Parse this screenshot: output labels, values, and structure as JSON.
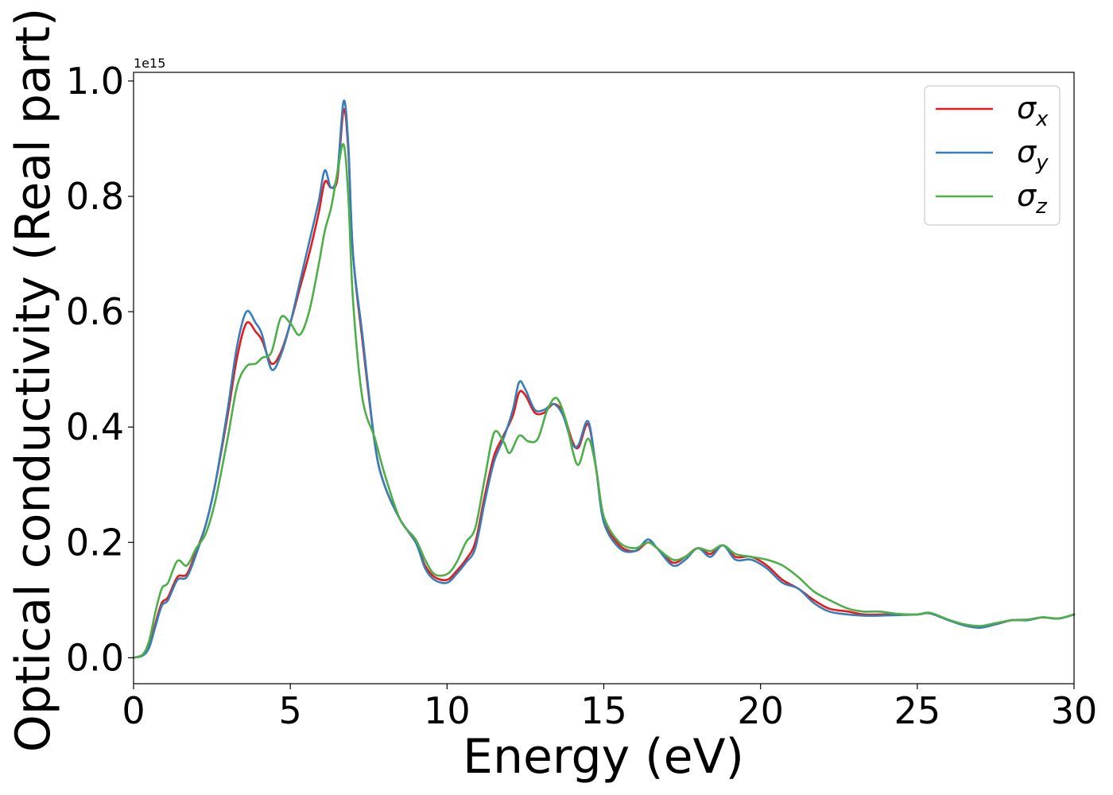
{
  "chart_data": {
    "type": "line",
    "xlabel": "Energy (eV)",
    "ylabel": "Optical conductivity (Real part)",
    "y_offset_text": "1e15",
    "xlim": [
      0,
      30
    ],
    "ylim": [
      -0.045,
      1.015
    ],
    "xticks": [
      0,
      5,
      10,
      15,
      20,
      25,
      30
    ],
    "xtick_labels": [
      "0",
      "5",
      "10",
      "15",
      "20",
      "25",
      "30"
    ],
    "yticks": [
      0.0,
      0.2,
      0.4,
      0.6,
      0.8,
      1.0
    ],
    "ytick_labels": [
      "0.0",
      "0.2",
      "0.4",
      "0.6",
      "0.8",
      "1.0"
    ],
    "grid": false,
    "legend_position": "top-right",
    "series": [
      {
        "name": "σx",
        "symbol": "σ",
        "subscript": "x",
        "color": "#e41a1c",
        "points": [
          [
            0,
            0
          ],
          [
            0.3,
            0.005
          ],
          [
            0.5,
            0.02
          ],
          [
            0.7,
            0.06
          ],
          [
            0.9,
            0.095
          ],
          [
            1.1,
            0.105
          ],
          [
            1.4,
            0.14
          ],
          [
            1.7,
            0.145
          ],
          [
            2.0,
            0.185
          ],
          [
            2.3,
            0.23
          ],
          [
            2.6,
            0.3
          ],
          [
            3.0,
            0.42
          ],
          [
            3.3,
            0.52
          ],
          [
            3.6,
            0.58
          ],
          [
            3.9,
            0.565
          ],
          [
            4.1,
            0.55
          ],
          [
            4.4,
            0.51
          ],
          [
            4.7,
            0.53
          ],
          [
            5.0,
            0.58
          ],
          [
            5.3,
            0.64
          ],
          [
            5.6,
            0.7
          ],
          [
            5.9,
            0.77
          ],
          [
            6.1,
            0.825
          ],
          [
            6.3,
            0.815
          ],
          [
            6.5,
            0.83
          ],
          [
            6.7,
            0.95
          ],
          [
            6.85,
            0.88
          ],
          [
            7.0,
            0.7
          ],
          [
            7.3,
            0.55
          ],
          [
            7.7,
            0.37
          ],
          [
            8.0,
            0.3
          ],
          [
            8.5,
            0.24
          ],
          [
            9.0,
            0.2
          ],
          [
            9.3,
            0.16
          ],
          [
            9.6,
            0.14
          ],
          [
            10.0,
            0.135
          ],
          [
            10.3,
            0.15
          ],
          [
            10.6,
            0.17
          ],
          [
            10.9,
            0.2
          ],
          [
            11.2,
            0.28
          ],
          [
            11.5,
            0.35
          ],
          [
            11.8,
            0.385
          ],
          [
            12.1,
            0.42
          ],
          [
            12.3,
            0.46
          ],
          [
            12.5,
            0.455
          ],
          [
            12.8,
            0.425
          ],
          [
            13.1,
            0.425
          ],
          [
            13.4,
            0.44
          ],
          [
            13.7,
            0.425
          ],
          [
            14.0,
            0.375
          ],
          [
            14.2,
            0.365
          ],
          [
            14.5,
            0.405
          ],
          [
            14.75,
            0.33
          ],
          [
            15.0,
            0.24
          ],
          [
            15.5,
            0.195
          ],
          [
            16.0,
            0.185
          ],
          [
            16.4,
            0.2
          ],
          [
            16.7,
            0.19
          ],
          [
            17.2,
            0.165
          ],
          [
            17.6,
            0.175
          ],
          [
            18.0,
            0.19
          ],
          [
            18.4,
            0.18
          ],
          [
            18.8,
            0.195
          ],
          [
            19.2,
            0.175
          ],
          [
            19.7,
            0.175
          ],
          [
            20.2,
            0.16
          ],
          [
            20.7,
            0.135
          ],
          [
            21.2,
            0.12
          ],
          [
            21.7,
            0.1
          ],
          [
            22.2,
            0.085
          ],
          [
            22.8,
            0.08
          ],
          [
            23.3,
            0.075
          ],
          [
            23.8,
            0.075
          ],
          [
            24.4,
            0.075
          ],
          [
            25.0,
            0.075
          ],
          [
            25.4,
            0.077
          ],
          [
            26.0,
            0.065
          ],
          [
            26.5,
            0.057
          ],
          [
            27.0,
            0.053
          ],
          [
            27.5,
            0.058
          ],
          [
            28.0,
            0.065
          ],
          [
            28.5,
            0.066
          ],
          [
            29.0,
            0.07
          ],
          [
            29.5,
            0.068
          ],
          [
            30.0,
            0.075
          ]
        ]
      },
      {
        "name": "σy",
        "symbol": "σ",
        "subscript": "y",
        "color": "#377eb8",
        "points": [
          [
            0,
            0
          ],
          [
            0.3,
            0.004
          ],
          [
            0.5,
            0.018
          ],
          [
            0.7,
            0.055
          ],
          [
            0.9,
            0.09
          ],
          [
            1.1,
            0.1
          ],
          [
            1.4,
            0.135
          ],
          [
            1.7,
            0.14
          ],
          [
            2.0,
            0.18
          ],
          [
            2.3,
            0.23
          ],
          [
            2.6,
            0.3
          ],
          [
            3.0,
            0.43
          ],
          [
            3.3,
            0.54
          ],
          [
            3.6,
            0.6
          ],
          [
            3.9,
            0.58
          ],
          [
            4.1,
            0.56
          ],
          [
            4.4,
            0.5
          ],
          [
            4.7,
            0.525
          ],
          [
            5.0,
            0.58
          ],
          [
            5.3,
            0.65
          ],
          [
            5.6,
            0.72
          ],
          [
            5.9,
            0.79
          ],
          [
            6.1,
            0.845
          ],
          [
            6.3,
            0.815
          ],
          [
            6.5,
            0.84
          ],
          [
            6.7,
            0.965
          ],
          [
            6.85,
            0.89
          ],
          [
            7.0,
            0.7
          ],
          [
            7.3,
            0.56
          ],
          [
            7.7,
            0.37
          ],
          [
            8.0,
            0.3
          ],
          [
            8.5,
            0.24
          ],
          [
            9.0,
            0.2
          ],
          [
            9.3,
            0.155
          ],
          [
            9.6,
            0.135
          ],
          [
            10.0,
            0.13
          ],
          [
            10.3,
            0.145
          ],
          [
            10.6,
            0.165
          ],
          [
            10.9,
            0.19
          ],
          [
            11.2,
            0.27
          ],
          [
            11.5,
            0.34
          ],
          [
            11.8,
            0.38
          ],
          [
            12.1,
            0.43
          ],
          [
            12.3,
            0.478
          ],
          [
            12.5,
            0.465
          ],
          [
            12.8,
            0.43
          ],
          [
            13.1,
            0.43
          ],
          [
            13.4,
            0.44
          ],
          [
            13.7,
            0.42
          ],
          [
            14.0,
            0.37
          ],
          [
            14.2,
            0.37
          ],
          [
            14.5,
            0.41
          ],
          [
            14.75,
            0.33
          ],
          [
            15.0,
            0.235
          ],
          [
            15.5,
            0.19
          ],
          [
            16.0,
            0.185
          ],
          [
            16.4,
            0.205
          ],
          [
            16.7,
            0.19
          ],
          [
            17.2,
            0.16
          ],
          [
            17.6,
            0.17
          ],
          [
            18.0,
            0.19
          ],
          [
            18.4,
            0.175
          ],
          [
            18.8,
            0.195
          ],
          [
            19.2,
            0.17
          ],
          [
            19.7,
            0.17
          ],
          [
            20.2,
            0.155
          ],
          [
            20.7,
            0.13
          ],
          [
            21.2,
            0.12
          ],
          [
            21.7,
            0.095
          ],
          [
            22.2,
            0.08
          ],
          [
            22.8,
            0.075
          ],
          [
            23.3,
            0.073
          ],
          [
            23.8,
            0.073
          ],
          [
            24.4,
            0.074
          ],
          [
            25.0,
            0.075
          ],
          [
            25.4,
            0.077
          ],
          [
            26.0,
            0.065
          ],
          [
            26.5,
            0.056
          ],
          [
            27.0,
            0.052
          ],
          [
            27.5,
            0.058
          ],
          [
            28.0,
            0.065
          ],
          [
            28.5,
            0.065
          ],
          [
            29.0,
            0.07
          ],
          [
            29.5,
            0.068
          ],
          [
            30.0,
            0.075
          ]
        ]
      },
      {
        "name": "σz",
        "symbol": "σ",
        "subscript": "z",
        "color": "#4daf4a",
        "points": [
          [
            0,
            0
          ],
          [
            0.3,
            0.006
          ],
          [
            0.5,
            0.03
          ],
          [
            0.7,
            0.08
          ],
          [
            0.9,
            0.12
          ],
          [
            1.1,
            0.13
          ],
          [
            1.4,
            0.168
          ],
          [
            1.7,
            0.16
          ],
          [
            2.0,
            0.19
          ],
          [
            2.3,
            0.215
          ],
          [
            2.6,
            0.27
          ],
          [
            3.0,
            0.38
          ],
          [
            3.3,
            0.47
          ],
          [
            3.6,
            0.505
          ],
          [
            3.9,
            0.51
          ],
          [
            4.1,
            0.52
          ],
          [
            4.4,
            0.53
          ],
          [
            4.7,
            0.59
          ],
          [
            5.0,
            0.58
          ],
          [
            5.3,
            0.56
          ],
          [
            5.6,
            0.6
          ],
          [
            5.9,
            0.68
          ],
          [
            6.1,
            0.74
          ],
          [
            6.3,
            0.78
          ],
          [
            6.5,
            0.84
          ],
          [
            6.7,
            0.89
          ],
          [
            6.85,
            0.8
          ],
          [
            7.0,
            0.62
          ],
          [
            7.3,
            0.45
          ],
          [
            7.7,
            0.38
          ],
          [
            8.0,
            0.32
          ],
          [
            8.5,
            0.24
          ],
          [
            9.0,
            0.205
          ],
          [
            9.3,
            0.17
          ],
          [
            9.6,
            0.145
          ],
          [
            10.0,
            0.145
          ],
          [
            10.3,
            0.165
          ],
          [
            10.6,
            0.2
          ],
          [
            10.9,
            0.225
          ],
          [
            11.2,
            0.31
          ],
          [
            11.5,
            0.39
          ],
          [
            11.8,
            0.375
          ],
          [
            12.0,
            0.355
          ],
          [
            12.3,
            0.385
          ],
          [
            12.6,
            0.375
          ],
          [
            12.9,
            0.38
          ],
          [
            13.2,
            0.43
          ],
          [
            13.5,
            0.45
          ],
          [
            13.8,
            0.41
          ],
          [
            14.0,
            0.36
          ],
          [
            14.2,
            0.335
          ],
          [
            14.5,
            0.38
          ],
          [
            14.75,
            0.33
          ],
          [
            15.0,
            0.245
          ],
          [
            15.5,
            0.2
          ],
          [
            16.0,
            0.19
          ],
          [
            16.4,
            0.2
          ],
          [
            16.7,
            0.19
          ],
          [
            17.2,
            0.17
          ],
          [
            17.6,
            0.175
          ],
          [
            18.0,
            0.19
          ],
          [
            18.4,
            0.185
          ],
          [
            18.8,
            0.195
          ],
          [
            19.2,
            0.18
          ],
          [
            19.7,
            0.175
          ],
          [
            20.2,
            0.17
          ],
          [
            20.7,
            0.16
          ],
          [
            21.2,
            0.14
          ],
          [
            21.7,
            0.115
          ],
          [
            22.2,
            0.1
          ],
          [
            22.8,
            0.085
          ],
          [
            23.3,
            0.08
          ],
          [
            23.8,
            0.08
          ],
          [
            24.4,
            0.076
          ],
          [
            25.0,
            0.075
          ],
          [
            25.4,
            0.078
          ],
          [
            26.0,
            0.066
          ],
          [
            26.5,
            0.058
          ],
          [
            27.0,
            0.055
          ],
          [
            27.5,
            0.06
          ],
          [
            28.0,
            0.065
          ],
          [
            28.5,
            0.066
          ],
          [
            29.0,
            0.07
          ],
          [
            29.5,
            0.068
          ],
          [
            30.0,
            0.075
          ]
        ]
      }
    ]
  }
}
